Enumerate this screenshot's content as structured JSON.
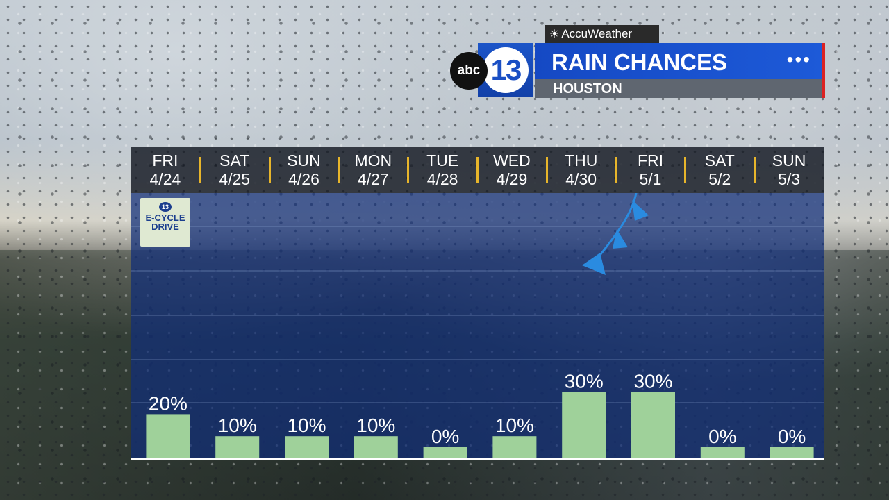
{
  "header": {
    "provider": "AccuWeather",
    "logo_abc": "abc",
    "logo_number": "13",
    "title": "RAIN CHANCES",
    "subtitle": "HOUSTON",
    "menu_dots": "•••"
  },
  "badge": {
    "line1": "E-CYCLE",
    "line2": "DRIVE"
  },
  "colors": {
    "bar": "#9fd19a",
    "accent": "#e7b52b",
    "brand_blue": "#1549c4",
    "brand_red": "#dd2222"
  },
  "chart_data": {
    "type": "bar",
    "categories": [
      "FRI 4/24",
      "SAT 4/25",
      "SUN 4/26",
      "MON 4/27",
      "TUE 4/28",
      "WED 4/29",
      "THU 4/30",
      "FRI 5/1",
      "SAT 5/2",
      "SUN 5/3"
    ],
    "days": [
      {
        "day": "FRI",
        "date": "4/24"
      },
      {
        "day": "SAT",
        "date": "4/25"
      },
      {
        "day": "SUN",
        "date": "4/26"
      },
      {
        "day": "MON",
        "date": "4/27"
      },
      {
        "day": "TUE",
        "date": "4/28"
      },
      {
        "day": "WED",
        "date": "4/29"
      },
      {
        "day": "THU",
        "date": "4/30"
      },
      {
        "day": "FRI",
        "date": "5/1"
      },
      {
        "day": "SAT",
        "date": "5/2"
      },
      {
        "day": "SUN",
        "date": "5/3"
      }
    ],
    "values": [
      20,
      10,
      10,
      10,
      0,
      10,
      30,
      30,
      0,
      0
    ],
    "labels": [
      "20%",
      "10%",
      "10%",
      "10%",
      "0%",
      "10%",
      "30%",
      "30%",
      "0%",
      "0%"
    ],
    "ylim": [
      0,
      100
    ],
    "grid": true
  }
}
